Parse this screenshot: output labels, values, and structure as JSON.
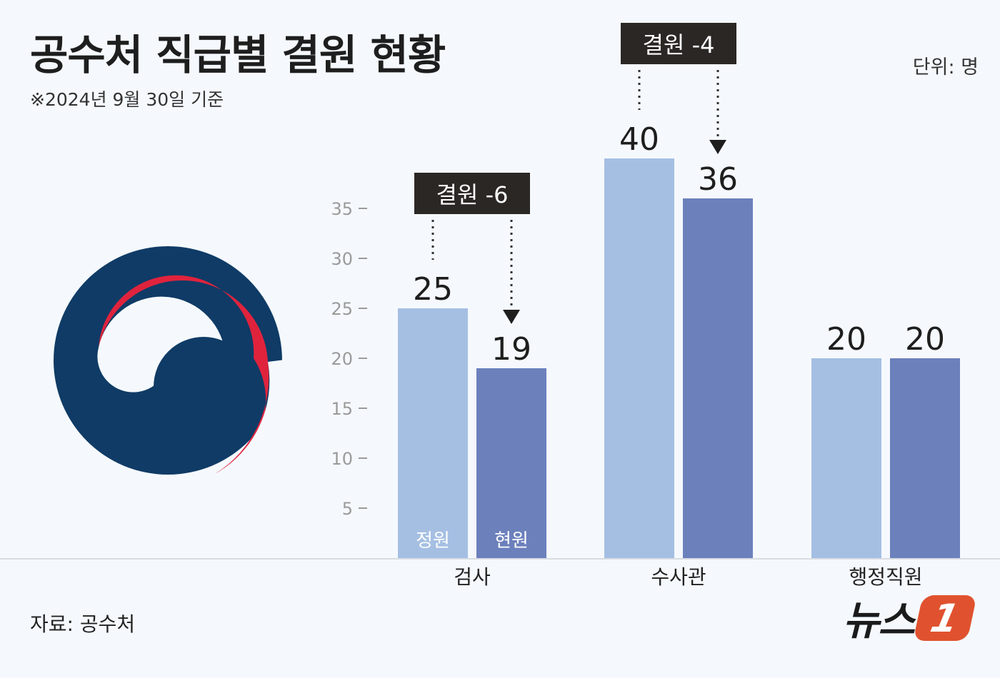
{
  "header": {
    "title": "공수처 직급별 결원 현황",
    "subtitle": "※2024년 9월 30일 기준",
    "unit": "단위: 명"
  },
  "footer": {
    "source": "자료: 공수처",
    "brand_text": "뉴스",
    "brand_mark": "1"
  },
  "colors": {
    "quota_bar": "#a5bfe3",
    "current_bar": "#6c80bc",
    "label_box": "#2b2725",
    "emblem_blue": "#0f3b66",
    "emblem_red": "#e0233d",
    "brand_orange": "#e0522f"
  },
  "chart_data": {
    "type": "bar",
    "categories": [
      "검사",
      "수사관",
      "행정직원"
    ],
    "series": [
      {
        "name": "정원",
        "values": [
          25,
          40,
          20
        ]
      },
      {
        "name": "현원",
        "values": [
          19,
          36,
          20
        ]
      }
    ],
    "yticks": [
      5,
      10,
      15,
      20,
      25,
      30,
      35
    ],
    "ylim": [
      0,
      40
    ],
    "annotations": [
      {
        "category": "검사",
        "text": "결원 -6"
      },
      {
        "category": "수사관",
        "text": "결원 -4"
      }
    ],
    "grid": false
  }
}
